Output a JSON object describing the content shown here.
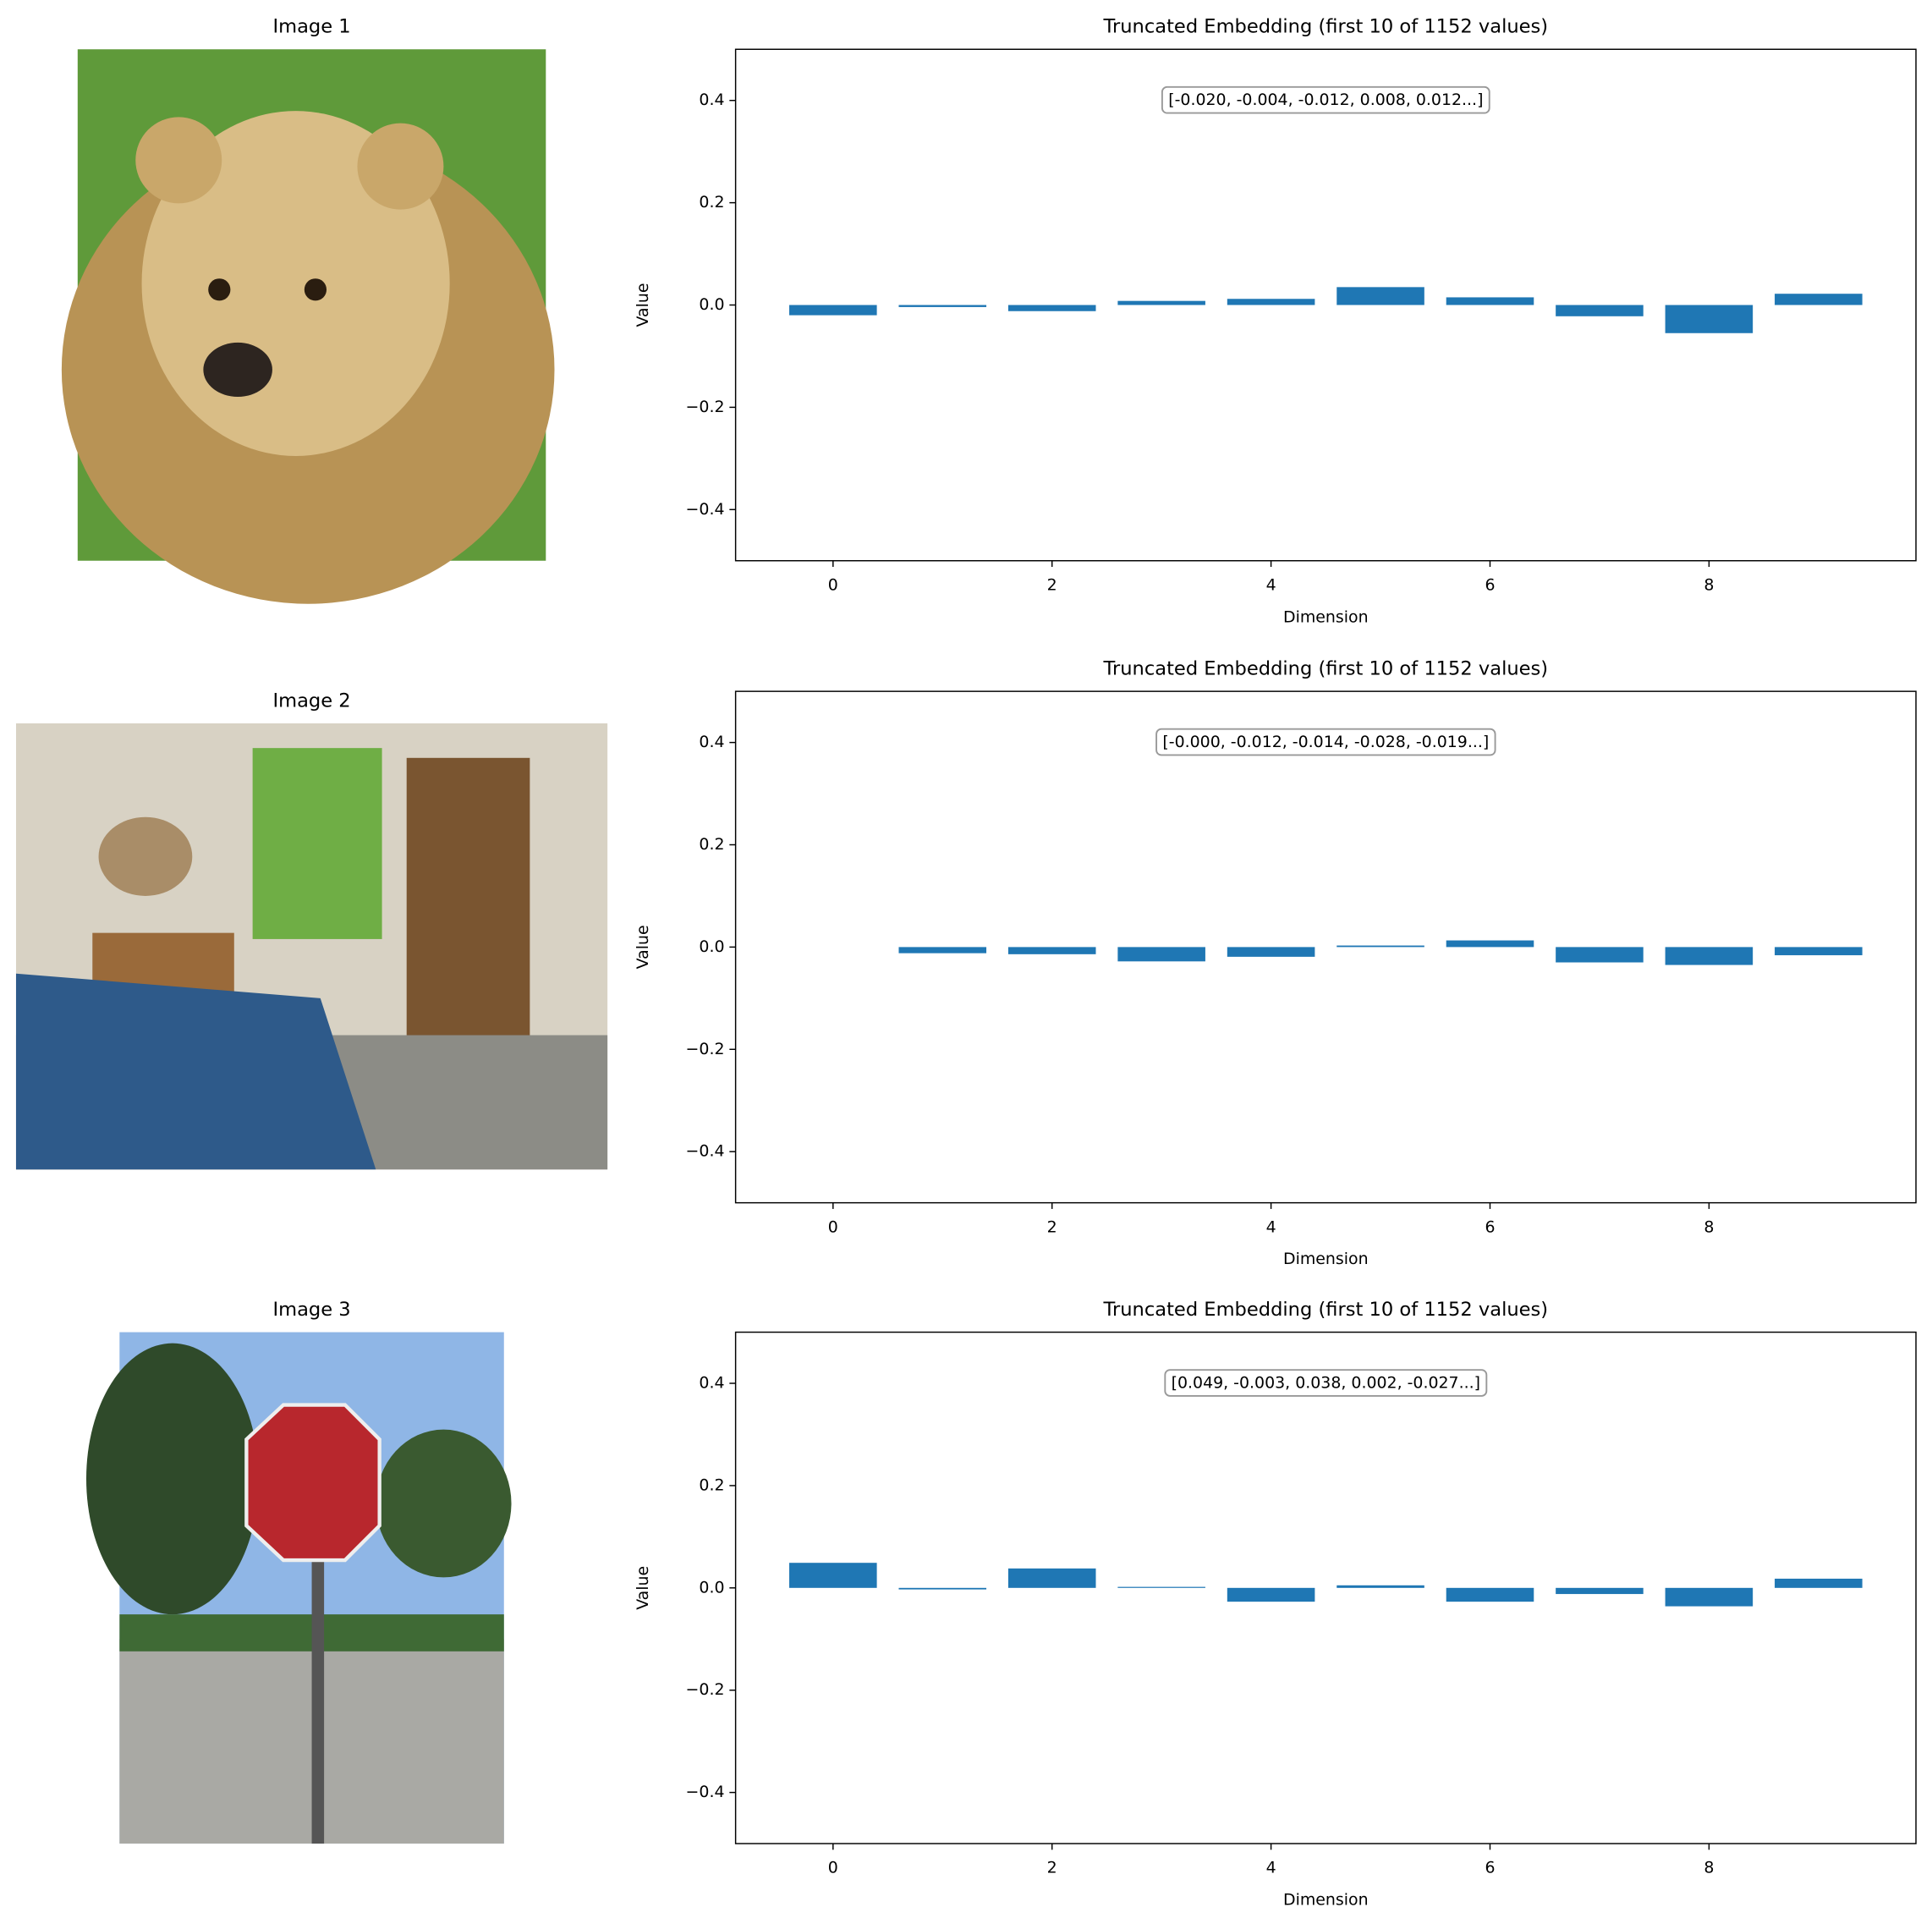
{
  "images": [
    {
      "title": "Image 1"
    },
    {
      "title": "Image 2"
    },
    {
      "title": "Image 3"
    }
  ],
  "chart_data": [
    {
      "type": "bar",
      "title": "Truncated Embedding (first 10 of 1152 values)",
      "xlabel": "Dimension",
      "ylabel": "Value",
      "annotation": "[-0.020, -0.004, -0.012, 0.008, 0.012...]",
      "x": [
        0,
        1,
        2,
        3,
        4,
        5,
        6,
        7,
        8,
        9
      ],
      "values": [
        -0.02,
        -0.004,
        -0.012,
        0.008,
        0.012,
        0.035,
        0.015,
        -0.022,
        -0.055,
        0.022
      ],
      "color": "#1f77b4",
      "xlim": [
        -0.89,
        9.89
      ],
      "xticks": [
        0,
        2,
        4,
        6,
        8
      ],
      "ylim": [
        -0.5,
        0.5
      ],
      "yticks": [
        {
          "value": -0.4,
          "label": "−0.4"
        },
        {
          "value": -0.2,
          "label": "−0.2"
        },
        {
          "value": 0,
          "label": "0.0"
        },
        0.2,
        0.4
      ],
      "grid": false
    },
    {
      "type": "bar",
      "title": "Truncated Embedding (first 10 of 1152 values)",
      "xlabel": "Dimension",
      "ylabel": "Value",
      "annotation": "[-0.000, -0.012, -0.014, -0.028, -0.019...]",
      "x": [
        0,
        1,
        2,
        3,
        4,
        5,
        6,
        7,
        8,
        9
      ],
      "values": [
        0,
        -0.012,
        -0.014,
        -0.028,
        -0.019,
        0.003,
        0.013,
        -0.03,
        -0.035,
        -0.016
      ],
      "color": "#1f77b4",
      "xlim": [
        -0.89,
        9.89
      ],
      "xticks": [
        0,
        2,
        4,
        6,
        8
      ],
      "ylim": [
        -0.5,
        0.5
      ],
      "yticks": [
        {
          "value": -0.4,
          "label": "−0.4"
        },
        {
          "value": -0.2,
          "label": "−0.2"
        },
        {
          "value": 0,
          "label": "0.0"
        },
        0.2,
        0.4
      ],
      "grid": false
    },
    {
      "type": "bar",
      "title": "Truncated Embedding (first 10 of 1152 values)",
      "xlabel": "Dimension",
      "ylabel": "Value",
      "annotation": "[0.049, -0.003, 0.038, 0.002, -0.027...]",
      "x": [
        0,
        1,
        2,
        3,
        4,
        5,
        6,
        7,
        8,
        9
      ],
      "values": [
        0.049,
        -0.003,
        0.038,
        0.002,
        -0.027,
        0.005,
        -0.027,
        -0.012,
        -0.036,
        0.018
      ],
      "color": "#1f77b4",
      "xlim": [
        -0.89,
        9.89
      ],
      "xticks": [
        0,
        2,
        4,
        6,
        8
      ],
      "ylim": [
        -0.5,
        0.5
      ],
      "yticks": [
        {
          "value": -0.4,
          "label": "−0.4"
        },
        {
          "value": -0.2,
          "label": "−0.2"
        },
        {
          "value": 0,
          "label": "0.0"
        },
        0.2,
        0.4
      ],
      "grid": false
    }
  ]
}
